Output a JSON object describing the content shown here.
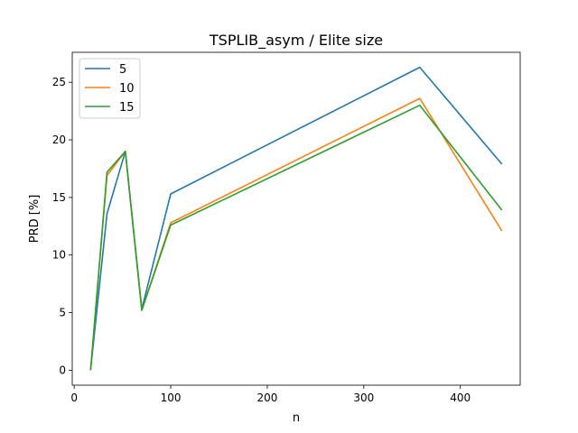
{
  "chart_data": {
    "type": "line",
    "title": "TSPLIB_asym / Elite size",
    "xlabel": "n",
    "ylabel": "PRD [%]",
    "xlim": [
      -2,
      462
    ],
    "ylim": [
      -1.3,
      27.6
    ],
    "xticks": [
      0,
      100,
      200,
      300,
      400
    ],
    "yticks": [
      0,
      5,
      10,
      15,
      20,
      25
    ],
    "x": [
      17,
      34,
      53,
      70,
      100,
      358,
      443
    ],
    "series": [
      {
        "name": "5",
        "color": "#1f77b4",
        "values": [
          0,
          13.6,
          19.0,
          5.3,
          15.3,
          26.3,
          17.9
        ]
      },
      {
        "name": "10",
        "color": "#ff7f0e",
        "values": [
          0,
          16.9,
          19.0,
          5.2,
          12.8,
          23.6,
          12.1
        ]
      },
      {
        "name": "15",
        "color": "#2ca02c",
        "values": [
          0,
          17.2,
          19.0,
          5.2,
          12.6,
          23.0,
          13.9
        ]
      }
    ],
    "legend": "top-left",
    "grid": false
  }
}
